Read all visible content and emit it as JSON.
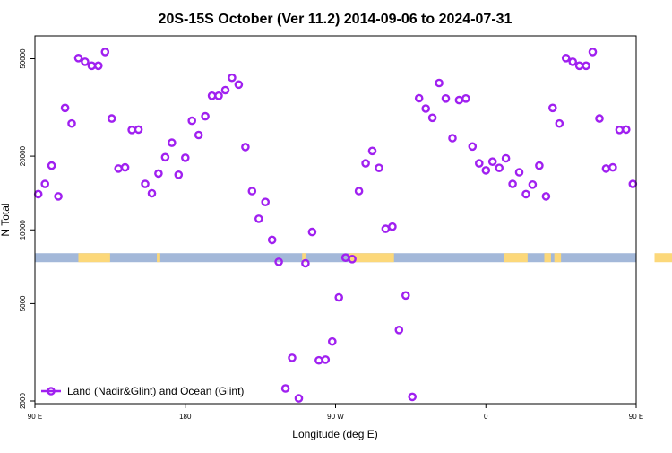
{
  "chart_data": {
    "type": "scatter",
    "title": "20S-15S October (Ver 11.2)   2014-09-06 to 2024-07-31",
    "xlabel": "Longitude (deg E)",
    "ylabel": "N Total",
    "x_scale": "longitude-wrapped",
    "y_scale": "log",
    "xlim": [
      90,
      450
    ],
    "ylim": [
      1950,
      62000
    ],
    "x_ticks": [
      {
        "value": 90,
        "label": "90 E"
      },
      {
        "value": 180,
        "label": "180"
      },
      {
        "value": 270,
        "label": "90 W"
      },
      {
        "value": 360,
        "label": "0"
      },
      {
        "value": 450,
        "label": "90 E"
      },
      {
        "value": 540,
        "label": "180"
      }
    ],
    "y_ticks": [
      {
        "value": 2000,
        "label": "2000"
      },
      {
        "value": 5000,
        "label": "5000"
      },
      {
        "value": 10000,
        "label": "10000"
      },
      {
        "value": 20000,
        "label": "20000"
      },
      {
        "value": 50000,
        "label": "50000"
      }
    ],
    "grid": false,
    "legend_position": "bottom-left",
    "colors": {
      "series": "#a020f0",
      "ocean": "#a3b8d9",
      "land": "#fcd87a"
    },
    "surface_strip": {
      "y": 7700,
      "land_ranges": [
        [
          116,
          135
        ],
        [
          163,
          165
        ],
        [
          250,
          252
        ],
        [
          278,
          305
        ],
        [
          371,
          385
        ],
        [
          395,
          399
        ],
        [
          401,
          405
        ],
        [
          461,
          482
        ]
      ]
    },
    "series": [
      {
        "name": "Land (Nadir&Glint) and Ocean (Glint)",
        "x": [
          92,
          96,
          100,
          104,
          108,
          112,
          116,
          120,
          124,
          128,
          132,
          136,
          140,
          144,
          148,
          152,
          156,
          160,
          164,
          168,
          172,
          176,
          180,
          184,
          188,
          192,
          196,
          200,
          204,
          208,
          212,
          216,
          220,
          224,
          228,
          232,
          236,
          240,
          244,
          248,
          252,
          256,
          260,
          264,
          268,
          272,
          276,
          280,
          284,
          288,
          292,
          296,
          300,
          304,
          308,
          312,
          316,
          320,
          324,
          328,
          332,
          336,
          340,
          344,
          348,
          352,
          356,
          360,
          364,
          368,
          372,
          376,
          380,
          384,
          388,
          392,
          396,
          400,
          404,
          408,
          412,
          416,
          420,
          424,
          428,
          432,
          436,
          440,
          444,
          448
        ],
        "y": [
          14000,
          15400,
          18300,
          13700,
          31500,
          27200,
          50300,
          48600,
          46800,
          46800,
          53300,
          28500,
          17800,
          18000,
          25600,
          25700,
          15400,
          14100,
          17000,
          19800,
          22700,
          16800,
          19700,
          27900,
          24400,
          29100,
          35300,
          35300,
          37200,
          41800,
          39200,
          21800,
          14400,
          11100,
          13000,
          9100,
          7400,
          2250,
          3000,
          2050,
          7300,
          9800,
          2930,
          2950,
          3500,
          5300,
          7700,
          7600,
          14400,
          18700,
          21000,
          17900,
          10100,
          10300,
          3900,
          5400,
          2080,
          34500,
          31300,
          28700,
          39800,
          34400,
          23700,
          33900,
          34400,
          21900,
          18700,
          17500,
          19000,
          17900,
          19600,
          15400,
          17200,
          14000,
          15300,
          18300,
          13700,
          31500,
          27200,
          50300,
          48600,
          46800,
          46800,
          53300,
          28500,
          17800,
          18000,
          25600,
          25700,
          15400
        ]
      }
    ]
  }
}
